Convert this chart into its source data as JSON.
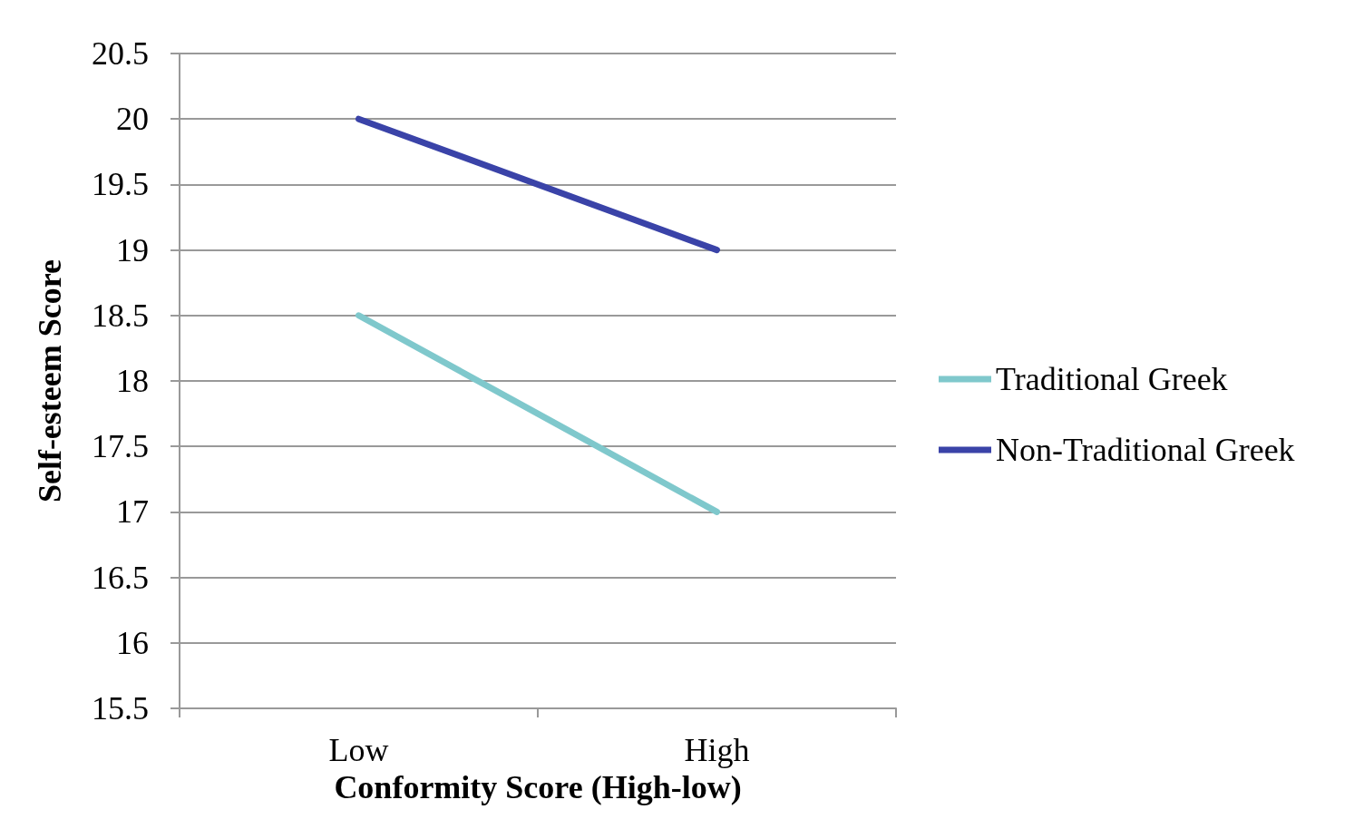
{
  "chart_data": {
    "type": "line",
    "xlabel": "Conformity Score (High-low)",
    "ylabel": "Self-esteem Score",
    "categories": [
      "Low",
      "High"
    ],
    "series": [
      {
        "name": "Traditional Greek",
        "color": "#7fc8cc",
        "values": [
          18.5,
          17
        ]
      },
      {
        "name": "Non-Traditional Greek",
        "color": "#3a43a8",
        "values": [
          20,
          19
        ]
      }
    ],
    "ylim": [
      15.5,
      20.5
    ],
    "yticks": [
      15.5,
      16,
      16.5,
      17,
      17.5,
      18,
      18.5,
      19,
      19.5,
      20,
      20.5
    ],
    "grid": "y",
    "legend": "right",
    "marker": "none",
    "line_style": "solid"
  }
}
